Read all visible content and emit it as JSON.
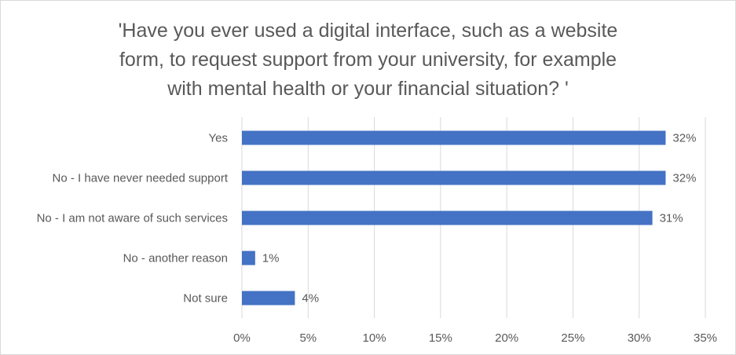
{
  "chart_data": {
    "type": "bar",
    "orientation": "horizontal",
    "title": "'Have you ever used a digital interface, such as a website form, to request support from your university, for example with mental health or your financial situation? '",
    "title_lines": [
      "'Have you ever used a digital interface, such as a website",
      "form, to request support from your university, for example",
      "with mental health or your financial situation? '"
    ],
    "categories": [
      "Yes",
      "No - I have never needed support",
      "No - I am not aware of such services",
      "No - another reason",
      "Not sure"
    ],
    "values": [
      32,
      32,
      31,
      1,
      4
    ],
    "value_labels": [
      "32%",
      "32%",
      "31%",
      "1%",
      "4%"
    ],
    "xlim": [
      0,
      35
    ],
    "x_ticks": [
      0,
      5,
      10,
      15,
      20,
      25,
      30,
      35
    ],
    "x_tick_labels": [
      "0%",
      "5%",
      "10%",
      "15%",
      "20%",
      "25%",
      "30%",
      "35%"
    ],
    "xlabel": "",
    "ylabel": "",
    "grid": true,
    "legend": "none",
    "bar_color": "#4472c4",
    "grid_color": "#d9d9d9",
    "text_color": "#595959"
  }
}
